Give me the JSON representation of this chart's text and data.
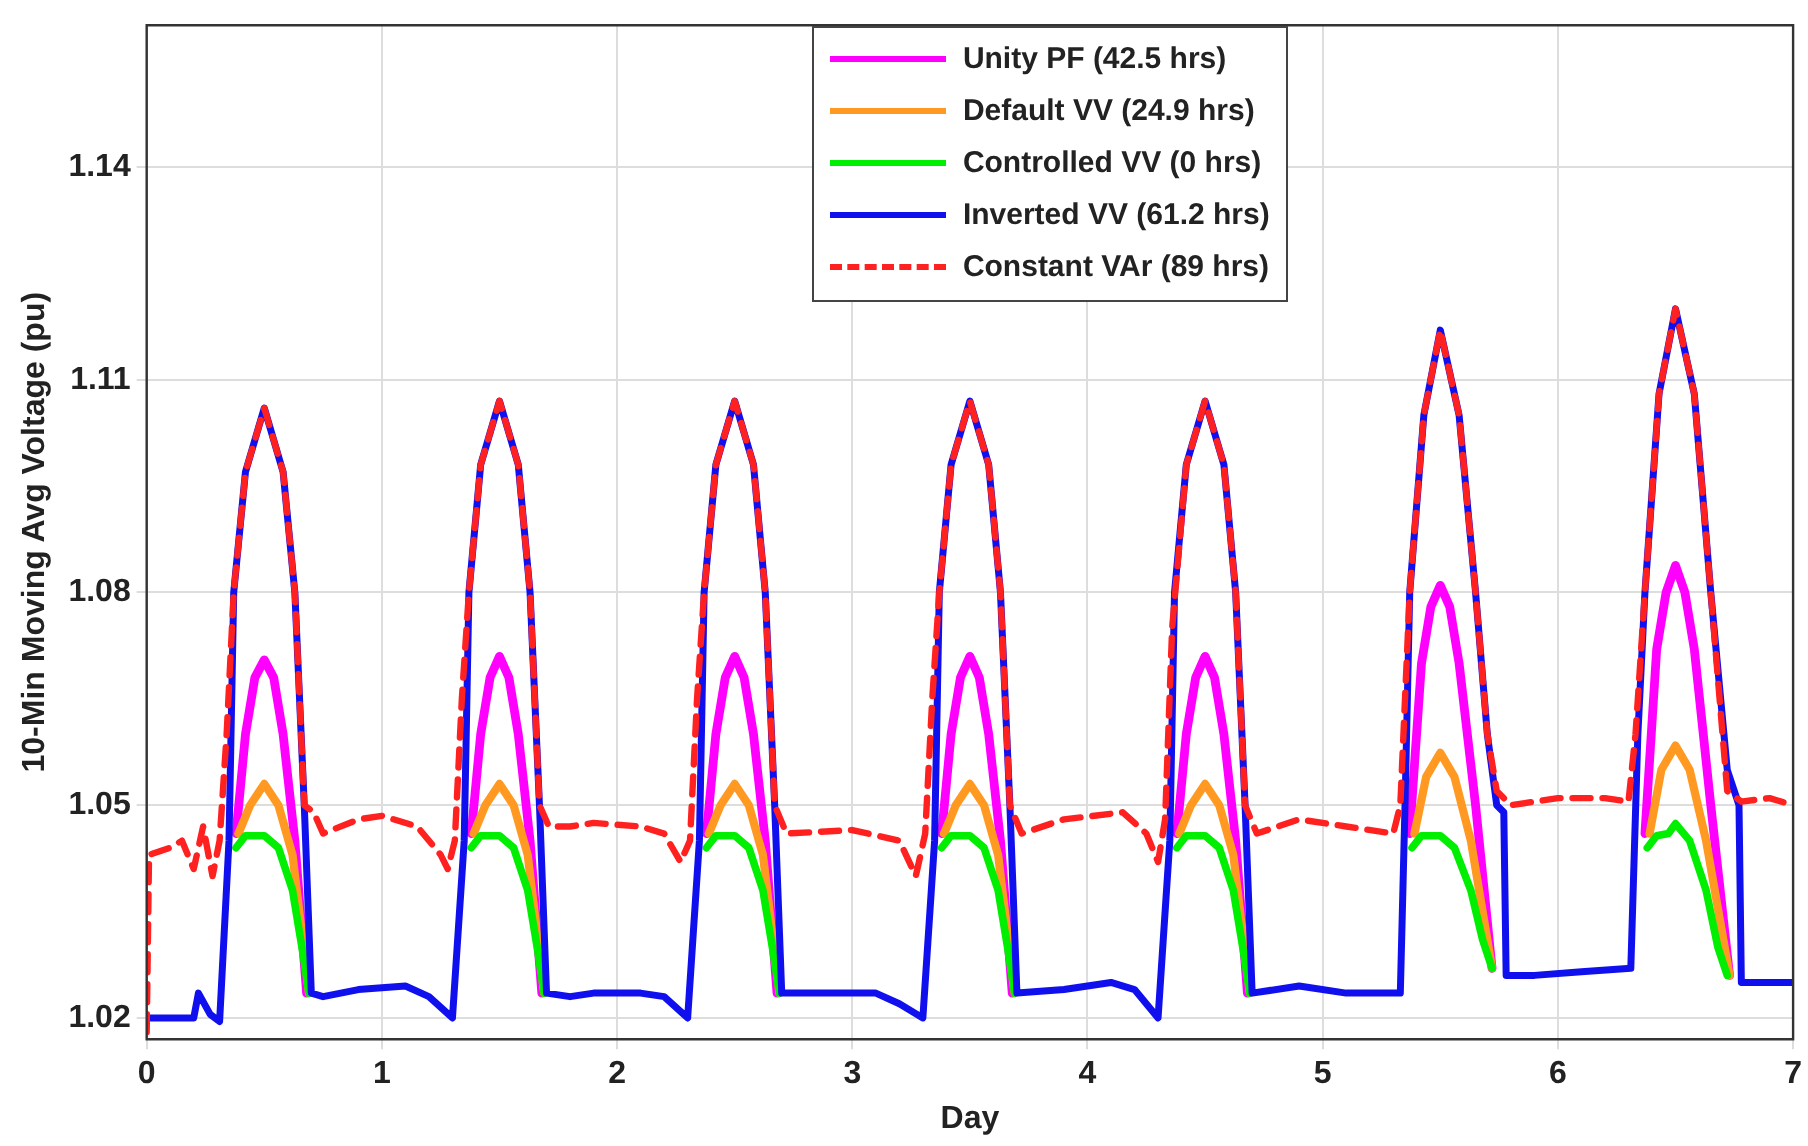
{
  "chart_data": {
    "type": "line",
    "xlabel": "Day",
    "ylabel": "10-Min Moving Avg Voltage (pu)",
    "xlim": [
      0,
      7
    ],
    "ylim": [
      1.017,
      1.16
    ],
    "xticks": [
      0,
      1,
      2,
      3,
      4,
      5,
      6,
      7
    ],
    "yticks": [
      1.02,
      1.05,
      1.08,
      1.11,
      1.14
    ],
    "grid": true,
    "legend": "top",
    "marker": "none",
    "series": [
      {
        "name": "Unity PF (42.5 hrs)",
        "color": "#ff00ff",
        "x": [
          0.38,
          0.42,
          0.46,
          0.5,
          0.54,
          0.58,
          0.63,
          0.68,
          0.9,
          1.38,
          1.42,
          1.46,
          1.5,
          1.54,
          1.58,
          1.63,
          1.68,
          1.9,
          2.38,
          2.42,
          2.46,
          2.5,
          2.54,
          2.58,
          2.63,
          2.68,
          2.9,
          3.38,
          3.42,
          3.46,
          3.5,
          3.54,
          3.58,
          3.63,
          3.68,
          3.9,
          4.38,
          4.42,
          4.46,
          4.5,
          4.54,
          4.58,
          4.63,
          4.68,
          4.9,
          5.37,
          5.42,
          5.46,
          5.5,
          5.54,
          5.58,
          5.65,
          5.72,
          5.9,
          6.37,
          6.42,
          6.46,
          6.5,
          6.54,
          6.58,
          6.65,
          6.73
        ],
        "values": [
          1.046,
          1.06,
          1.068,
          1.0705,
          1.068,
          1.06,
          1.045,
          1.0235,
          null,
          1.046,
          1.06,
          1.068,
          1.071,
          1.068,
          1.06,
          1.045,
          1.0235,
          null,
          1.046,
          1.06,
          1.068,
          1.071,
          1.068,
          1.06,
          1.045,
          1.0235,
          null,
          1.046,
          1.06,
          1.068,
          1.071,
          1.068,
          1.06,
          1.045,
          1.0235,
          null,
          1.046,
          1.06,
          1.068,
          1.071,
          1.068,
          1.06,
          1.045,
          1.0235,
          null,
          1.046,
          1.07,
          1.078,
          1.081,
          1.078,
          1.07,
          1.05,
          1.027,
          null,
          1.046,
          1.072,
          1.08,
          1.0838,
          1.08,
          1.072,
          1.05,
          1.026
        ]
      },
      {
        "name": "Default VV (24.9 hrs)",
        "color": "#ff9922",
        "x": [
          0.39,
          0.44,
          0.5,
          0.56,
          0.62,
          0.69,
          0.9,
          1.39,
          1.44,
          1.5,
          1.56,
          1.62,
          1.69,
          1.9,
          2.39,
          2.44,
          2.5,
          2.56,
          2.62,
          2.69,
          2.9,
          3.39,
          3.44,
          3.5,
          3.56,
          3.62,
          3.69,
          3.9,
          4.39,
          4.44,
          4.5,
          4.56,
          4.62,
          4.69,
          4.9,
          5.39,
          5.44,
          5.5,
          5.56,
          5.63,
          5.72,
          5.9,
          6.39,
          6.44,
          6.5,
          6.56,
          6.63,
          6.73
        ],
        "values": [
          1.046,
          1.05,
          1.053,
          1.05,
          1.043,
          1.0235,
          null,
          1.046,
          1.05,
          1.053,
          1.05,
          1.043,
          1.0235,
          null,
          1.046,
          1.05,
          1.053,
          1.05,
          1.043,
          1.0235,
          null,
          1.046,
          1.05,
          1.053,
          1.05,
          1.043,
          1.0235,
          null,
          1.046,
          1.05,
          1.053,
          1.05,
          1.043,
          1.0235,
          null,
          1.046,
          1.054,
          1.0574,
          1.054,
          1.045,
          1.027,
          null,
          1.046,
          1.055,
          1.0584,
          1.055,
          1.045,
          1.026
        ]
      },
      {
        "name": "Controlled VV (0 hrs)",
        "color": "#00ee00",
        "x": [
          0.38,
          0.42,
          0.5,
          0.56,
          0.62,
          0.66,
          0.69,
          0.9,
          1.38,
          1.42,
          1.5,
          1.56,
          1.62,
          1.66,
          1.69,
          1.9,
          2.38,
          2.42,
          2.5,
          2.56,
          2.62,
          2.66,
          2.69,
          2.9,
          3.38,
          3.42,
          3.5,
          3.56,
          3.62,
          3.66,
          3.69,
          3.9,
          4.38,
          4.42,
          4.5,
          4.56,
          4.62,
          4.66,
          4.69,
          4.9,
          5.38,
          5.42,
          5.5,
          5.56,
          5.63,
          5.68,
          5.72,
          5.9,
          6.38,
          6.42,
          6.47,
          6.5,
          6.56,
          6.63,
          6.68,
          6.72
        ],
        "values": [
          1.044,
          1.0457,
          1.0457,
          1.044,
          1.038,
          1.03,
          1.0235,
          null,
          1.044,
          1.0457,
          1.0457,
          1.044,
          1.038,
          1.03,
          1.0235,
          null,
          1.044,
          1.0457,
          1.0457,
          1.044,
          1.038,
          1.03,
          1.0235,
          null,
          1.044,
          1.0457,
          1.0457,
          1.044,
          1.038,
          1.03,
          1.0235,
          null,
          1.044,
          1.0457,
          1.0457,
          1.044,
          1.038,
          1.03,
          1.0235,
          null,
          1.044,
          1.0457,
          1.0457,
          1.044,
          1.038,
          1.031,
          1.027,
          null,
          1.044,
          1.0457,
          1.046,
          1.0474,
          1.045,
          1.038,
          1.03,
          1.026
        ]
      },
      {
        "name": "Inverted VV (61.2 hrs)",
        "color": "#1010ee",
        "x": [
          0,
          0.2,
          0.22,
          0.27,
          0.31,
          0.35,
          0.37,
          0.42,
          0.5,
          0.58,
          0.63,
          0.67,
          0.7,
          0.75,
          0.9,
          1.1,
          1.2,
          1.3,
          1.35,
          1.37,
          1.42,
          1.5,
          1.58,
          1.63,
          1.67,
          1.7,
          1.8,
          1.9,
          2.1,
          2.2,
          2.3,
          2.35,
          2.37,
          2.42,
          2.5,
          2.58,
          2.63,
          2.67,
          2.7,
          2.8,
          3.0,
          3.1,
          3.2,
          3.3,
          3.35,
          3.37,
          3.42,
          3.5,
          3.58,
          3.63,
          3.67,
          3.7,
          3.9,
          4.1,
          4.2,
          4.3,
          4.35,
          4.37,
          4.42,
          4.5,
          4.58,
          4.63,
          4.67,
          4.7,
          4.9,
          5.1,
          5.33,
          5.35,
          5.37,
          5.43,
          5.5,
          5.58,
          5.65,
          5.7,
          5.74,
          5.77,
          5.78,
          5.9,
          6.1,
          6.31,
          6.34,
          6.37,
          6.43,
          6.5,
          6.58,
          6.65,
          6.72,
          6.77,
          6.78,
          6.85,
          7
        ],
        "values": [
          1.02,
          1.02,
          1.0235,
          1.0205,
          1.0195,
          1.045,
          1.08,
          1.097,
          1.106,
          1.097,
          1.08,
          1.05,
          1.0235,
          1.023,
          1.024,
          1.0245,
          1.023,
          1.02,
          1.045,
          1.08,
          1.098,
          1.107,
          1.098,
          1.08,
          1.05,
          1.0235,
          1.023,
          1.0235,
          1.0235,
          1.023,
          1.02,
          1.045,
          1.08,
          1.098,
          1.107,
          1.098,
          1.08,
          1.05,
          1.0235,
          1.0235,
          1.0235,
          1.0235,
          1.022,
          1.02,
          1.045,
          1.08,
          1.098,
          1.107,
          1.098,
          1.08,
          1.05,
          1.0235,
          1.024,
          1.025,
          1.024,
          1.02,
          1.045,
          1.08,
          1.098,
          1.107,
          1.098,
          1.08,
          1.05,
          1.0235,
          1.0245,
          1.0235,
          1.0235,
          1.05,
          1.08,
          1.105,
          1.117,
          1.105,
          1.08,
          1.06,
          1.05,
          1.049,
          1.026,
          1.026,
          1.0265,
          1.027,
          1.06,
          1.08,
          1.108,
          1.12,
          1.108,
          1.08,
          1.055,
          1.05,
          1.025,
          1.025,
          1.025
        ]
      },
      {
        "name": "Constant VAr (89 hrs)",
        "color": "#ff2020",
        "line_style": "dashed",
        "x": [
          0,
          0.01,
          0.1,
          0.15,
          0.2,
          0.24,
          0.28,
          0.31,
          0.34,
          0.37,
          0.42,
          0.5,
          0.58,
          0.63,
          0.67,
          0.71,
          0.75,
          0.9,
          1.0,
          1.15,
          1.25,
          1.28,
          1.31,
          1.34,
          1.37,
          1.42,
          1.5,
          1.58,
          1.63,
          1.67,
          1.71,
          1.8,
          1.9,
          2.1,
          2.2,
          2.27,
          2.31,
          2.34,
          2.37,
          2.42,
          2.5,
          2.58,
          2.63,
          2.67,
          2.72,
          3.0,
          3.2,
          3.27,
          3.31,
          3.34,
          3.37,
          3.42,
          3.5,
          3.58,
          3.63,
          3.67,
          3.72,
          3.9,
          4.15,
          4.25,
          4.3,
          4.33,
          4.36,
          4.42,
          4.5,
          4.58,
          4.63,
          4.67,
          4.72,
          4.9,
          5.1,
          5.3,
          5.33,
          5.37,
          5.43,
          5.5,
          5.58,
          5.65,
          5.7,
          5.74,
          5.8,
          6.0,
          6.2,
          6.3,
          6.33,
          6.37,
          6.43,
          6.5,
          6.58,
          6.65,
          6.72,
          6.78,
          6.9,
          7
        ],
        "values": [
          1.018,
          1.043,
          1.044,
          1.045,
          1.041,
          1.047,
          1.04,
          1.045,
          1.06,
          1.08,
          1.097,
          1.106,
          1.097,
          1.08,
          1.05,
          1.049,
          1.046,
          1.048,
          1.0485,
          1.047,
          1.043,
          1.041,
          1.045,
          1.065,
          1.08,
          1.098,
          1.107,
          1.098,
          1.08,
          1.05,
          1.047,
          1.047,
          1.0475,
          1.047,
          1.046,
          1.042,
          1.045,
          1.065,
          1.08,
          1.098,
          1.107,
          1.098,
          1.08,
          1.05,
          1.046,
          1.0465,
          1.045,
          1.04,
          1.046,
          1.065,
          1.08,
          1.098,
          1.107,
          1.098,
          1.08,
          1.05,
          1.046,
          1.048,
          1.049,
          1.046,
          1.042,
          1.048,
          1.075,
          1.098,
          1.107,
          1.098,
          1.08,
          1.05,
          1.046,
          1.048,
          1.047,
          1.046,
          1.05,
          1.08,
          1.105,
          1.117,
          1.105,
          1.08,
          1.06,
          1.052,
          1.05,
          1.051,
          1.051,
          1.0505,
          1.06,
          1.08,
          1.108,
          1.12,
          1.108,
          1.08,
          1.052,
          1.0505,
          1.051,
          1.05
        ]
      }
    ]
  }
}
